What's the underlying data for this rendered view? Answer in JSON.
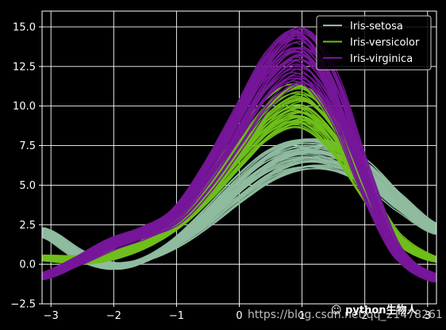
{
  "chart_data": {
    "type": "line",
    "subtype": "andrews_curves",
    "title": "",
    "xlabel": "",
    "ylabel": "",
    "xlim": [
      -3.14159,
      3.14159
    ],
    "ylim": [
      -2.5,
      16
    ],
    "x_ticks": [
      -3,
      -2,
      -1,
      0,
      1,
      2,
      3
    ],
    "y_ticks": [
      -2.5,
      0.0,
      2.5,
      5.0,
      7.5,
      10.0,
      12.5,
      15.0
    ],
    "y_tick_labels": [
      "−2.5",
      "0.0",
      "2.5",
      "5.0",
      "7.5",
      "10.0",
      "12.5",
      "15.0"
    ],
    "x_tick_labels": [
      "−3",
      "−2",
      "−1",
      "0",
      "1",
      "2",
      "3"
    ],
    "grid": true,
    "background": "#000000",
    "grid_color": "#ffffff",
    "legend_position": "top-right",
    "series": [
      {
        "name": "Iris-setosa",
        "color": "#8fbc9f",
        "count": 50,
        "profile": {
          "x": [
            -3.14,
            -2.5,
            -2.0,
            -1.5,
            -1.0,
            -0.5,
            0.0,
            0.5,
            1.0,
            1.5,
            2.0,
            2.5,
            3.14
          ],
          "y": [
            2.0,
            0.5,
            -0.1,
            0.3,
            1.4,
            3.0,
            4.8,
            6.3,
            7.0,
            6.8,
            5.8,
            4.0,
            2.2
          ]
        }
      },
      {
        "name": "Iris-versicolor",
        "color": "#6fbf1a",
        "count": 50,
        "profile": {
          "x": [
            -3.14,
            -2.5,
            -2.0,
            -1.5,
            -1.0,
            -0.5,
            0.0,
            0.5,
            1.0,
            1.5,
            2.0,
            2.5,
            3.14
          ],
          "y": [
            0.4,
            0.3,
            0.6,
            1.3,
            2.6,
            4.6,
            7.0,
            9.2,
            10.0,
            8.2,
            4.8,
            1.7,
            0.3
          ]
        }
      },
      {
        "name": "Iris-virginica",
        "color": "#77169a",
        "count": 50,
        "profile": {
          "x": [
            -3.14,
            -2.5,
            -2.0,
            -1.5,
            -1.0,
            -0.5,
            0.0,
            0.5,
            1.0,
            1.5,
            2.0,
            2.5,
            3.14
          ],
          "y": [
            -0.8,
            0.3,
            1.3,
            2.0,
            3.1,
            5.6,
            8.8,
            12.0,
            13.2,
            10.6,
            5.3,
            0.8,
            -0.9
          ]
        }
      }
    ]
  },
  "watermark": {
    "url": "https://blog.csdn.net/qq_21478261",
    "wechat": "python生物人"
  }
}
